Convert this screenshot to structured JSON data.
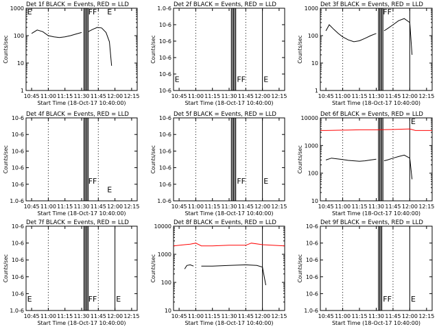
{
  "figure": {
    "background": "#ffffff",
    "event_color": "#000000",
    "lld_color": "#ff0000",
    "x_tick_labels": [
      "10:45",
      "11:00",
      "11:15",
      "11:30",
      "11:45",
      "12:00",
      "12:15"
    ],
    "x_label": "Start Time (18-Oct-17 10:40:00)",
    "y_label": "Counts/sec"
  },
  "chart_data": [
    {
      "type": "line",
      "title": "Det 1f BLACK = Events, RED = LLD",
      "ylog": true,
      "ylim": [
        1,
        1000
      ],
      "y_tick_labels": [
        "1",
        "10",
        "100",
        "1000"
      ],
      "xlim": [
        "10:40",
        "12:20"
      ],
      "dotted_x": [
        "11:00",
        "11:45"
      ],
      "solid_x": [
        "11:32",
        "11:33",
        "11:34",
        "11:35",
        "11:36"
      ],
      "markers": [
        {
          "label": "E",
          "x": "10:41",
          "y": 1000
        },
        {
          "label": "FF",
          "x": "11:36",
          "y": 1000
        },
        {
          "label": "E",
          "x": "11:53",
          "y": 1000
        }
      ],
      "series": [
        {
          "color": "#000000",
          "x": [
            "10:45",
            "10:50",
            "10:55",
            "11:00",
            "11:05",
            "11:10",
            "11:15",
            "11:20",
            "11:25",
            "11:30"
          ],
          "values": [
            120,
            160,
            140,
            100,
            90,
            85,
            90,
            100,
            115,
            130
          ]
        },
        {
          "color": "#000000",
          "x": [
            "11:36",
            "11:40",
            "11:44",
            "11:48",
            "11:52",
            "11:55",
            "11:57"
          ],
          "values": [
            140,
            170,
            200,
            190,
            130,
            60,
            8
          ]
        }
      ]
    },
    {
      "type": "line",
      "title": "Det 2f BLACK = Events, RED = LLD",
      "ylog": true,
      "ylim": [
        9e-07,
        1e-06
      ],
      "y_tick_labels": [
        "10-6",
        "10-6",
        "10-6",
        "10-6",
        "10-6",
        "1.0-6"
      ],
      "xlim": [
        "10:40",
        "12:20"
      ],
      "dotted_x": [
        "11:00",
        "11:45"
      ],
      "solid_x": [
        "11:32",
        "11:33",
        "11:34",
        "11:35",
        "11:36",
        "12:00"
      ],
      "markers": [
        {
          "label": "E",
          "x": "10:41",
          "y": 9.1e-07
        },
        {
          "label": "FF",
          "x": "11:37",
          "y": 9.1e-07
        },
        {
          "label": "E",
          "x": "12:01",
          "y": 9.1e-07
        }
      ],
      "series": []
    },
    {
      "type": "line",
      "title": "Det 3f BLACK = Events, RED = LLD",
      "ylog": true,
      "ylim": [
        1,
        1000
      ],
      "y_tick_labels": [
        "1",
        "10",
        "100",
        "1000"
      ],
      "xlim": [
        "10:40",
        "12:20"
      ],
      "dotted_x": [
        "11:00",
        "11:45"
      ],
      "solid_x": [
        "11:32",
        "11:33",
        "11:34",
        "11:35",
        "11:36",
        "12:00"
      ],
      "markers": [
        {
          "label": "FF",
          "x": "11:36",
          "y": 1000
        }
      ],
      "series": [
        {
          "color": "#000000",
          "x": [
            "10:45",
            "10:48",
            "10:52",
            "10:56",
            "11:00",
            "11:05",
            "11:10",
            "11:15",
            "11:20",
            "11:25",
            "11:30"
          ],
          "values": [
            150,
            250,
            170,
            120,
            90,
            70,
            60,
            65,
            80,
            100,
            120
          ]
        },
        {
          "color": "#000000",
          "x": [
            "11:37",
            "11:40",
            "11:45",
            "11:50",
            "11:55",
            "12:00",
            "12:02"
          ],
          "values": [
            150,
            180,
            250,
            350,
            420,
            300,
            20
          ]
        }
      ]
    },
    {
      "type": "line",
      "title": "Det 4f BLACK = Events, RED = LLD",
      "ylog": true,
      "ylim": [
        9e-07,
        1e-06
      ],
      "y_tick_labels": [
        "1.0-6",
        "10-6",
        "10-6",
        "10-6",
        "10-6",
        "10-6"
      ],
      "xlim": [
        "10:40",
        "12:20"
      ],
      "dotted_x": [
        "11:00",
        "11:45"
      ],
      "solid_x": [
        "11:32",
        "11:33",
        "11:34",
        "11:35",
        "11:36"
      ],
      "markers": [
        {
          "label": "FF",
          "x": "11:36",
          "y": 9.2e-07
        },
        {
          "label": "E",
          "x": "11:53",
          "y": 9.1e-07
        }
      ],
      "series": []
    },
    {
      "type": "line",
      "title": "Det 5f BLACK = Events, RED = LLD",
      "ylog": true,
      "ylim": [
        9e-07,
        1e-06
      ],
      "y_tick_labels": [
        "1.0-6",
        "10-6",
        "10-6",
        "10-6",
        "10-6",
        "10-6"
      ],
      "xlim": [
        "10:40",
        "12:20"
      ],
      "dotted_x": [
        "11:00",
        "11:45"
      ],
      "solid_x": [
        "11:32",
        "11:33",
        "11:34",
        "11:35",
        "11:36",
        "12:00"
      ],
      "markers": [
        {
          "label": "FF",
          "x": "11:37",
          "y": 9.2e-07
        },
        {
          "label": "E",
          "x": "12:01",
          "y": 9.2e-07
        }
      ],
      "series": []
    },
    {
      "type": "line",
      "title": "Det 6f BLACK = Events, RED = LLD",
      "ylog": true,
      "ylim": [
        10,
        10000
      ],
      "y_tick_labels": [
        "10",
        "100",
        "1000",
        "10000"
      ],
      "xlim": [
        "10:40",
        "12:20"
      ],
      "dotted_x": [
        "11:00",
        "11:45"
      ],
      "solid_x": [
        "11:32",
        "11:33",
        "11:34",
        "11:35",
        "11:36",
        "12:00"
      ],
      "markers": [
        {
          "label": "E",
          "x": "12:01",
          "y": 10000
        }
      ],
      "series": [
        {
          "color": "#ff0000",
          "x": [
            "10:40",
            "10:45",
            "11:00",
            "11:15",
            "11:30",
            "11:45",
            "12:00",
            "12:05",
            "12:20"
          ],
          "values": [
            3500,
            3500,
            3600,
            3700,
            3700,
            3800,
            4000,
            3500,
            3500
          ]
        },
        {
          "color": "#000000",
          "x": [
            "10:45",
            "10:50",
            "10:55",
            "11:00",
            "11:05",
            "11:10",
            "11:15",
            "11:20",
            "11:25",
            "11:30"
          ],
          "values": [
            300,
            350,
            330,
            310,
            290,
            280,
            270,
            280,
            300,
            320
          ]
        },
        {
          "color": "#000000",
          "x": [
            "11:37",
            "11:40",
            "11:45",
            "11:50",
            "11:55",
            "12:00",
            "12:02"
          ],
          "values": [
            280,
            300,
            350,
            400,
            450,
            350,
            60
          ]
        }
      ]
    },
    {
      "type": "line",
      "title": "Det 7f BLACK = Events, RED = LLD",
      "ylog": true,
      "ylim": [
        9e-07,
        1e-06
      ],
      "y_tick_labels": [
        "1.0-6",
        "10-6",
        "10-6",
        "10-6",
        "10-6",
        "10-6"
      ],
      "xlim": [
        "10:40",
        "12:20"
      ],
      "dotted_x": [
        "11:00",
        "11:45"
      ],
      "solid_x": [
        "11:32",
        "11:33",
        "11:34",
        "11:35",
        "11:36",
        "12:00"
      ],
      "markers": [
        {
          "label": "E",
          "x": "10:41",
          "y": 9.1e-07
        },
        {
          "label": "FF",
          "x": "11:36",
          "y": 9.1e-07
        },
        {
          "label": "E",
          "x": "12:01",
          "y": 9.1e-07
        }
      ],
      "series": []
    },
    {
      "type": "line",
      "title": "Det 8f BLACK = Events, RED = LLD",
      "ylog": true,
      "ylim": [
        10,
        10000
      ],
      "y_tick_labels": [
        "10",
        "100",
        "1000",
        "10000"
      ],
      "xlim": [
        "10:40",
        "12:20"
      ],
      "dotted_x": [
        "11:00",
        "11:45"
      ],
      "solid_x": [
        "12:00"
      ],
      "markers": [],
      "series": [
        {
          "color": "#ff0000",
          "x": [
            "10:40",
            "10:50",
            "10:55",
            "11:00",
            "11:05",
            "11:15",
            "11:30",
            "11:45",
            "11:50",
            "12:00",
            "12:20"
          ],
          "values": [
            2000,
            2200,
            2300,
            2500,
            2000,
            2000,
            2100,
            2100,
            2500,
            2200,
            2000
          ]
        },
        {
          "color": "#000000",
          "x": [
            "10:50",
            "10:52",
            "10:55",
            "10:58"
          ],
          "values": [
            300,
            400,
            420,
            380
          ]
        },
        {
          "color": "#000000",
          "x": [
            "11:05",
            "11:15",
            "11:30",
            "11:45",
            "11:55",
            "12:00",
            "12:03"
          ],
          "values": [
            380,
            380,
            400,
            420,
            400,
            350,
            80
          ]
        }
      ]
    },
    {
      "type": "line",
      "title": "Det 9f BLACK = Events, RED = LLD",
      "ylog": true,
      "ylim": [
        9e-07,
        1e-06
      ],
      "y_tick_labels": [
        "1.0-6",
        "10-6",
        "10-6",
        "10-6",
        "10-6",
        "10-6"
      ],
      "xlim": [
        "10:40",
        "12:20"
      ],
      "dotted_x": [
        "11:00",
        "11:45"
      ],
      "solid_x": [
        "11:32",
        "11:33",
        "11:34",
        "11:35",
        "12:00"
      ],
      "markers": [
        {
          "label": "FF",
          "x": "11:36",
          "y": 9.1e-07
        },
        {
          "label": "E",
          "x": "12:01",
          "y": 9.1e-07
        }
      ],
      "series": []
    }
  ]
}
